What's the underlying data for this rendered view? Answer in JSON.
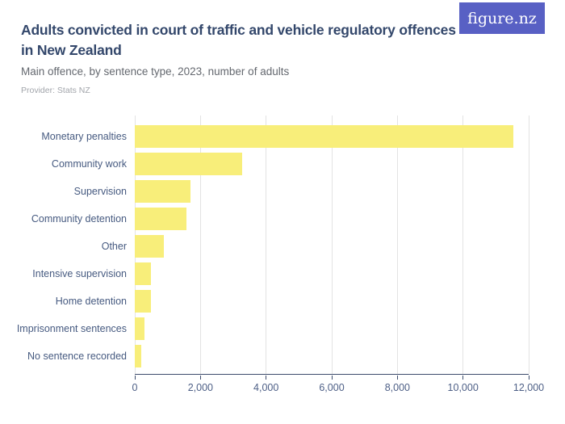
{
  "brand": {
    "logo_text": "figure.nz",
    "logo_bg": "#5860c4",
    "logo_fg": "#ffffff"
  },
  "header": {
    "title_line1": "Adults convicted in court of traffic and vehicle regulatory offences",
    "title_line2": "in New Zealand",
    "subtitle": "Main offence, by sentence type, 2023, number of adults",
    "provider": "Provider: Stats NZ",
    "title_color": "#33476b",
    "subtitle_color": "#64686f",
    "provider_color": "#a2a5ab"
  },
  "chart_data": {
    "type": "bar",
    "orientation": "horizontal",
    "title": "Adults convicted in court of traffic and vehicle regulatory offences in New Zealand",
    "subtitle": "Main offence, by sentence type, 2023, number of adults",
    "provider": "Stats NZ",
    "categories": [
      "Monetary penalties",
      "Community work",
      "Supervision",
      "Community detention",
      "Other",
      "Intensive supervision",
      "Home detention",
      "Imprisonment sentences",
      "No sentence recorded"
    ],
    "values": [
      11530,
      3270,
      1690,
      1580,
      890,
      500,
      480,
      300,
      200
    ],
    "xlabel": "",
    "ylabel": "",
    "xlim": [
      0,
      12000
    ],
    "x_tick_values": [
      0,
      2000,
      4000,
      6000,
      8000,
      10000,
      12000
    ],
    "x_tick_labels": [
      "0",
      "2,000",
      "4,000",
      "6,000",
      "8,000",
      "10,000",
      "12,000"
    ],
    "grid": true,
    "legend": false,
    "colors": {
      "bar": "#f8ee7a",
      "gridline": "#e3e3e3",
      "axis": "#3e4d6d",
      "tick_label": "#4d5f86",
      "category_label": "#465a80"
    }
  }
}
